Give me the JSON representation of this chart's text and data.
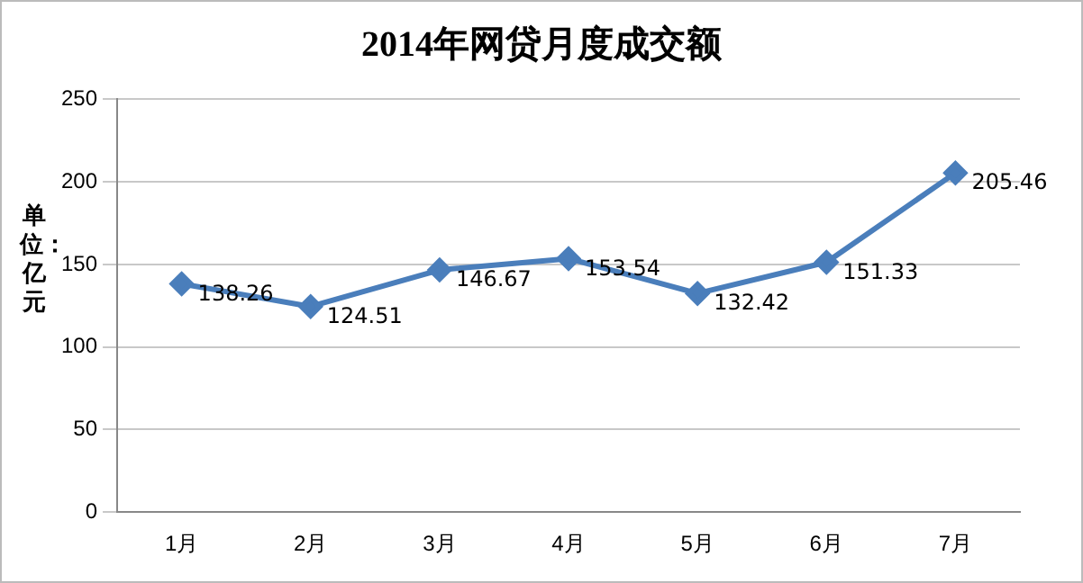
{
  "chart_data": {
    "type": "line",
    "title": "2014年网贷月度成交额",
    "ylabel": "单位：亿元",
    "categories": [
      "1月",
      "2月",
      "3月",
      "4月",
      "5月",
      "6月",
      "7月"
    ],
    "series": [
      {
        "color": "#4a7ebb",
        "values": [
          138.26,
          124.51,
          146.67,
          153.54,
          132.42,
          151.33,
          205.46
        ]
      }
    ],
    "ylim": [
      0,
      250
    ],
    "yticks": [
      0,
      50,
      100,
      150,
      200,
      250
    ],
    "grid": "y",
    "legend": false,
    "marker": "diamond",
    "data_labels": true
  }
}
